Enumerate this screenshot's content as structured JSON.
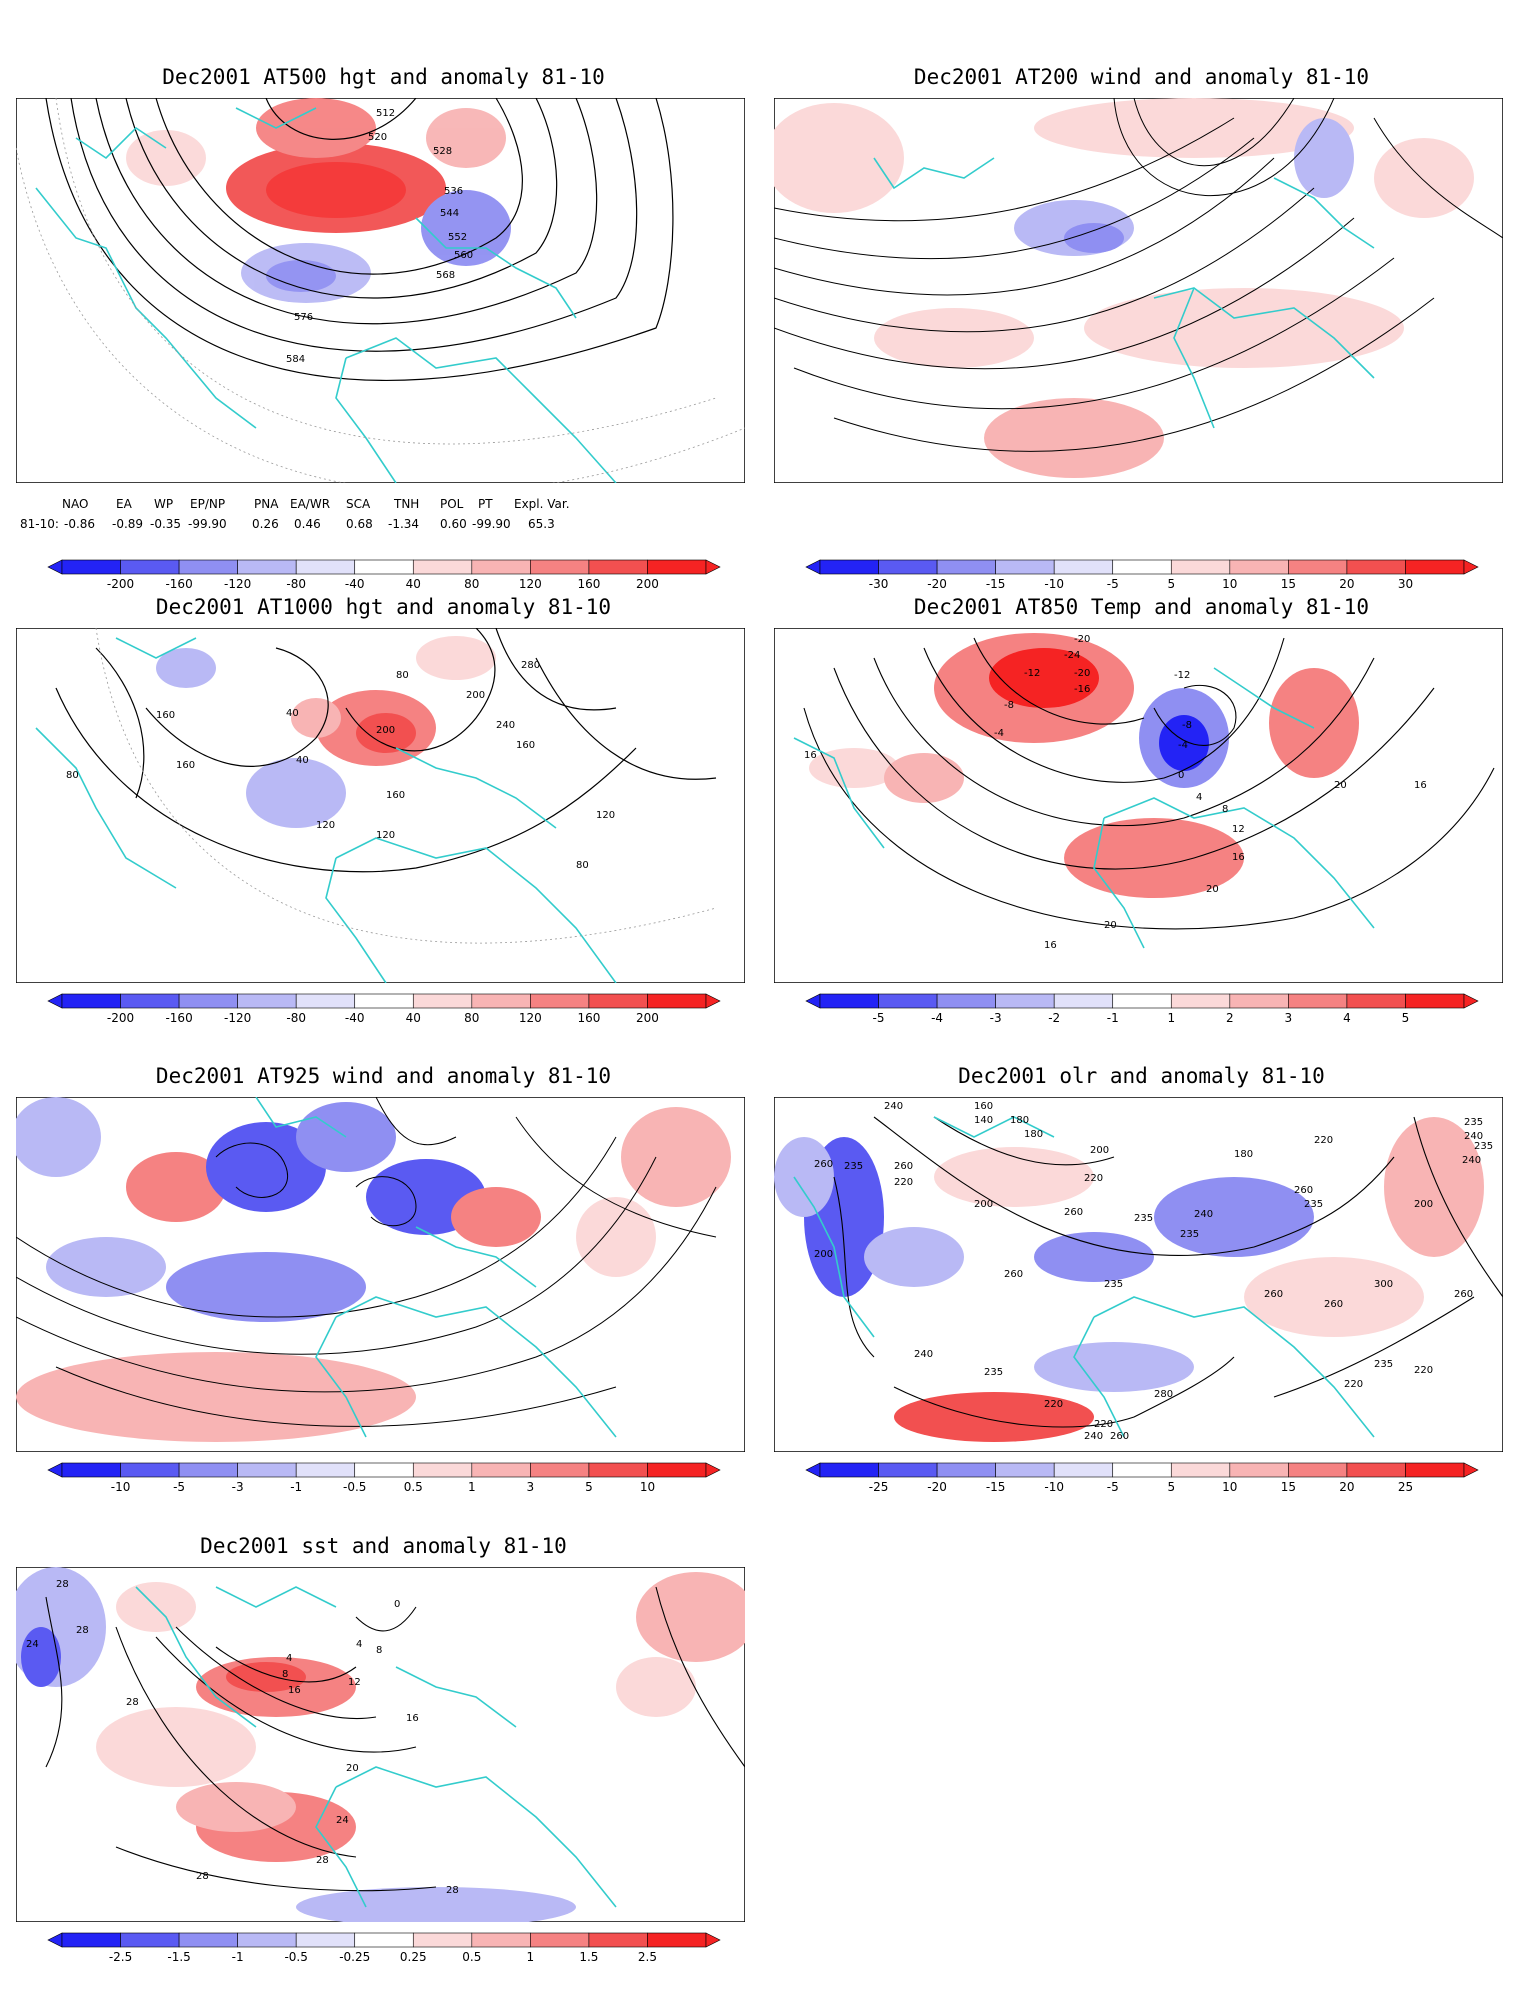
{
  "panels": [
    {
      "id": "p1",
      "title": "Dec2001 AT500 hgt and anomaly 81-10",
      "contour_labels": [
        "512",
        "520",
        "528",
        "536",
        "544",
        "552",
        "560",
        "568",
        "576",
        "584"
      ],
      "colorbar_ticks": [
        "-200",
        "-160",
        "-120",
        "-80",
        "-40",
        "40",
        "80",
        "120",
        "160",
        "200"
      ]
    },
    {
      "id": "p2",
      "title": "Dec2001 AT200 wind and anomaly 81-10",
      "contour_labels": [],
      "colorbar_ticks": [
        "-30",
        "-20",
        "-15",
        "-10",
        "-5",
        "5",
        "10",
        "15",
        "20",
        "30"
      ]
    },
    {
      "id": "p3",
      "title": "Dec2001 AT1000 hgt and anomaly 81-10",
      "contour_labels": [
        "120",
        "160",
        "40",
        "80",
        "200",
        "240",
        "280",
        "160",
        "120",
        "80",
        "80",
        "160",
        "120",
        "160",
        "200",
        "40"
      ],
      "colorbar_ticks": [
        "-200",
        "-160",
        "-120",
        "-80",
        "-40",
        "40",
        "80",
        "120",
        "160",
        "200"
      ]
    },
    {
      "id": "p4",
      "title": "Dec2001 AT850 Temp and anomaly 81-10",
      "contour_labels": [
        "-20",
        "-24",
        "-20",
        "-16",
        "-12",
        "-8",
        "-4",
        "0",
        "4",
        "8",
        "12",
        "16",
        "20",
        "16",
        "-12",
        "-8",
        "-4",
        "20",
        "16",
        "20",
        "16"
      ],
      "colorbar_ticks": [
        "-5",
        "-4",
        "-3",
        "-2",
        "-1",
        "1",
        "2",
        "3",
        "4",
        "5"
      ]
    },
    {
      "id": "p5",
      "title": "Dec2001 AT925 wind and anomaly 81-10",
      "contour_labels": [],
      "colorbar_ticks": [
        "-10",
        "-5",
        "-3",
        "-1",
        "-0.5",
        "0.5",
        "1",
        "3",
        "5",
        "10"
      ]
    },
    {
      "id": "p6",
      "title": "Dec2001 olr and anomaly 81-10",
      "contour_labels": [
        "240",
        "160",
        "140",
        "180",
        "260",
        "235",
        "260",
        "220",
        "200",
        "200",
        "180",
        "200",
        "220",
        "180",
        "220",
        "260",
        "235",
        "235",
        "240",
        "235",
        "235",
        "260",
        "260",
        "300",
        "260",
        "260",
        "240",
        "235",
        "220",
        "220",
        "240",
        "260",
        "280",
        "220",
        "235",
        "200",
        "260",
        "240",
        "235",
        "235",
        "240",
        "220"
      ],
      "colorbar_ticks": [
        "-25",
        "-20",
        "-15",
        "-10",
        "-5",
        "5",
        "10",
        "15",
        "20",
        "25"
      ]
    },
    {
      "id": "p7",
      "title": "Dec2001 sst and anomaly 81-10",
      "contour_labels": [
        "28",
        "24",
        "28",
        "28",
        "4",
        "8",
        "12",
        "16",
        "0",
        "4",
        "8",
        "16",
        "20",
        "24",
        "28",
        "28",
        "28"
      ],
      "colorbar_ticks": [
        "-2.5",
        "-1.5",
        "-1",
        "-0.5",
        "-0.25",
        "0.25",
        "0.5",
        "1",
        "1.5",
        "2.5"
      ]
    }
  ],
  "indices": {
    "names": [
      "NAO",
      "EA",
      "WP",
      "EP/NP",
      "PNA",
      "EA/WR",
      "SCA",
      "TNH",
      "POL",
      "PT",
      "Expl. Var."
    ],
    "row_label": "81-10:",
    "values": [
      "-0.86",
      "-0.89",
      "-0.35",
      "-99.90",
      "0.26",
      "0.46",
      "0.68",
      "-1.34",
      "0.60",
      "-99.90",
      "65.3"
    ]
  },
  "colors": {
    "coastline": "#33cccc",
    "contour": "#000000",
    "scale": [
      "#2323f5",
      "#5a5af2",
      "#8f8ff2",
      "#b9b9f5",
      "#e1e1fa",
      "#ffffff",
      "#fbd9d9",
      "#f8b4b4",
      "#f58282",
      "#f25050",
      "#f52323"
    ]
  }
}
